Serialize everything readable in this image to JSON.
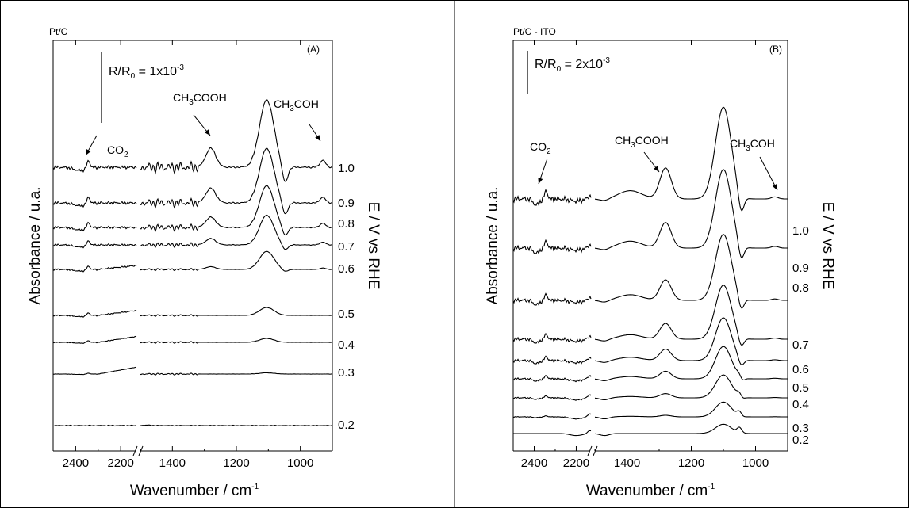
{
  "chart_data": [
    {
      "type": "line",
      "title": "Pt/C",
      "panel_label": "(A)",
      "xlabel": "Wavenumber / cm",
      "xlabel_sup": "-1",
      "ylabel": "Absorbance / u.a.",
      "right_label": "E / V vs RHE",
      "xlim": [
        2500,
        900
      ],
      "axis_break": [
        2120,
        1510
      ],
      "x_ticks": [
        "2400",
        "2200",
        "1400",
        "1200",
        "1000"
      ],
      "y_ticks_shown": false,
      "scale_bar": {
        "main": "R/R",
        "sub": "0",
        "eq": " = 1x10",
        "exp": "-3"
      },
      "annotations": [
        {
          "main": "CO",
          "sub": "2",
          "rest": ""
        },
        {
          "main": "CH",
          "sub": "3",
          "rest": "COOH"
        },
        {
          "main": "CH",
          "sub": "3",
          "rest": "COH"
        }
      ],
      "series": [
        {
          "label": "1.0",
          "level": 1.0
        },
        {
          "label": "0.9",
          "level": 0.9
        },
        {
          "label": "0.8",
          "level": 0.8
        },
        {
          "label": "0.7",
          "level": 0.7
        },
        {
          "label": "0.6",
          "level": 0.6
        },
        {
          "label": "0.5",
          "level": 0.5
        },
        {
          "label": "0.4",
          "level": 0.4
        },
        {
          "label": "0.3",
          "level": 0.3
        },
        {
          "label": "0.2",
          "level": 0.2
        }
      ]
    },
    {
      "type": "line",
      "title": "Pt/C - ITO",
      "panel_label": "(B)",
      "xlabel": "Wavenumber / cm",
      "xlabel_sup": "-1",
      "ylabel": "Absorbance / u.a.",
      "right_label": "E / V vs RHE",
      "xlim": [
        2500,
        900
      ],
      "axis_break": [
        2120,
        1510
      ],
      "x_ticks": [
        "2400",
        "2200",
        "1400",
        "1200",
        "1000"
      ],
      "y_ticks_shown": false,
      "scale_bar": {
        "main": "R/R",
        "sub": "0",
        "eq": " = 2x10",
        "exp": "-3"
      },
      "annotations": [
        {
          "main": "CO",
          "sub": "2",
          "rest": ""
        },
        {
          "main": "CH",
          "sub": "3",
          "rest": "COOH"
        },
        {
          "main": "CH",
          "sub": "3",
          "rest": "COH"
        }
      ],
      "series": [
        {
          "label": "1.0",
          "level": 1.0
        },
        {
          "label": "0.9",
          "level": 0.9
        },
        {
          "label": "0.8",
          "level": 0.8
        },
        {
          "label": "0.7",
          "level": 0.7
        },
        {
          "label": "0.6",
          "level": 0.6
        },
        {
          "label": "0.5",
          "level": 0.5
        },
        {
          "label": "0.4",
          "level": 0.4
        },
        {
          "label": "0.3",
          "level": 0.3
        },
        {
          "label": "0.2",
          "level": 0.2
        }
      ]
    }
  ]
}
